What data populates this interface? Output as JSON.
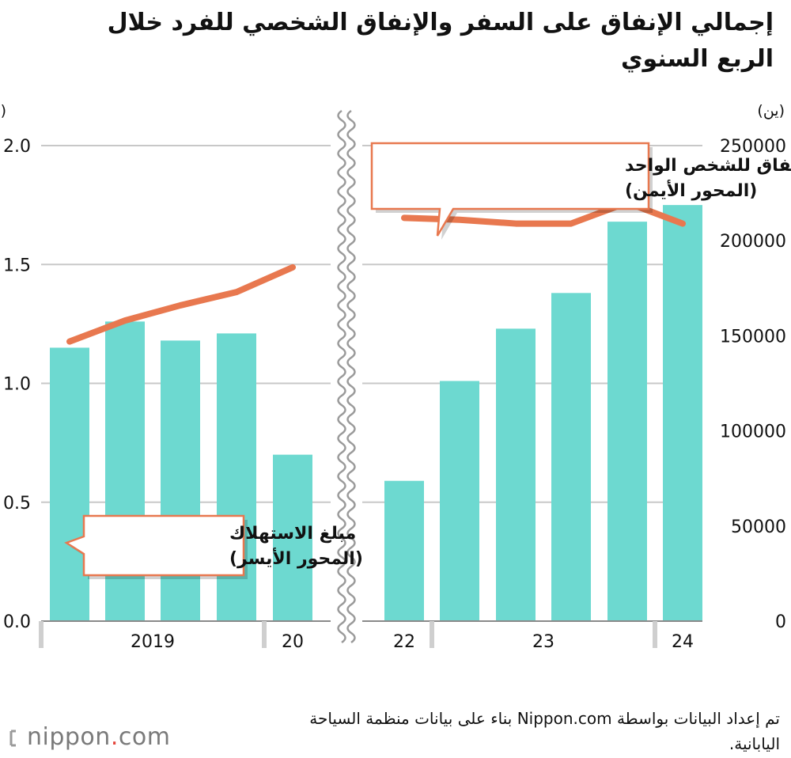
{
  "title": "إجمالي الإنفاق على السفر والإنفاق الشخصي للفرد خلال الربع السنوي",
  "source": "تم إعداد البيانات بواسطة Nippon.com بناء على بيانات منظمة السياحة اليابانية.",
  "logo": {
    "name": "nippon",
    "dot": ".",
    "suffix": "com"
  },
  "colors": {
    "bar": "#6dd9d0",
    "line": "#e8784f",
    "callout_border": "#e8784f",
    "grid": "#c8c8c8",
    "axis": "#8a8a8a"
  },
  "chart_data": {
    "type": "bar",
    "left_axis": {
      "label": "(تريليون ين)",
      "ticks": [
        "2.0",
        "1.5",
        "1.0",
        "0.5",
        "0.0"
      ],
      "ylim": [
        0,
        2.0
      ]
    },
    "right_axis": {
      "label": "(ين)",
      "ticks": [
        "250000",
        "200000",
        "150000",
        "100000",
        "50000",
        "0"
      ],
      "ylim": [
        0,
        250000
      ]
    },
    "x_groups": [
      "2019",
      "20",
      "22",
      "23",
      "24"
    ],
    "bar_series": {
      "name": "مبلغ الاستهلاك",
      "axis_note": "(المحور الأيسر)",
      "values": [
        1.15,
        1.26,
        1.18,
        1.21,
        0.7,
        0.59,
        1.01,
        1.23,
        1.38,
        1.68,
        1.75
      ]
    },
    "line_series": {
      "name": "مبلغ الإنفاق للشخص الواحد",
      "axis_note": "(المحور الأيمن)",
      "segments": [
        [
          147000,
          158000,
          166000,
          173000,
          186000
        ],
        [
          212000,
          211000,
          209000,
          209000,
          220000,
          209000
        ]
      ]
    },
    "axis_break": "between 20 and 22",
    "grid": true
  }
}
